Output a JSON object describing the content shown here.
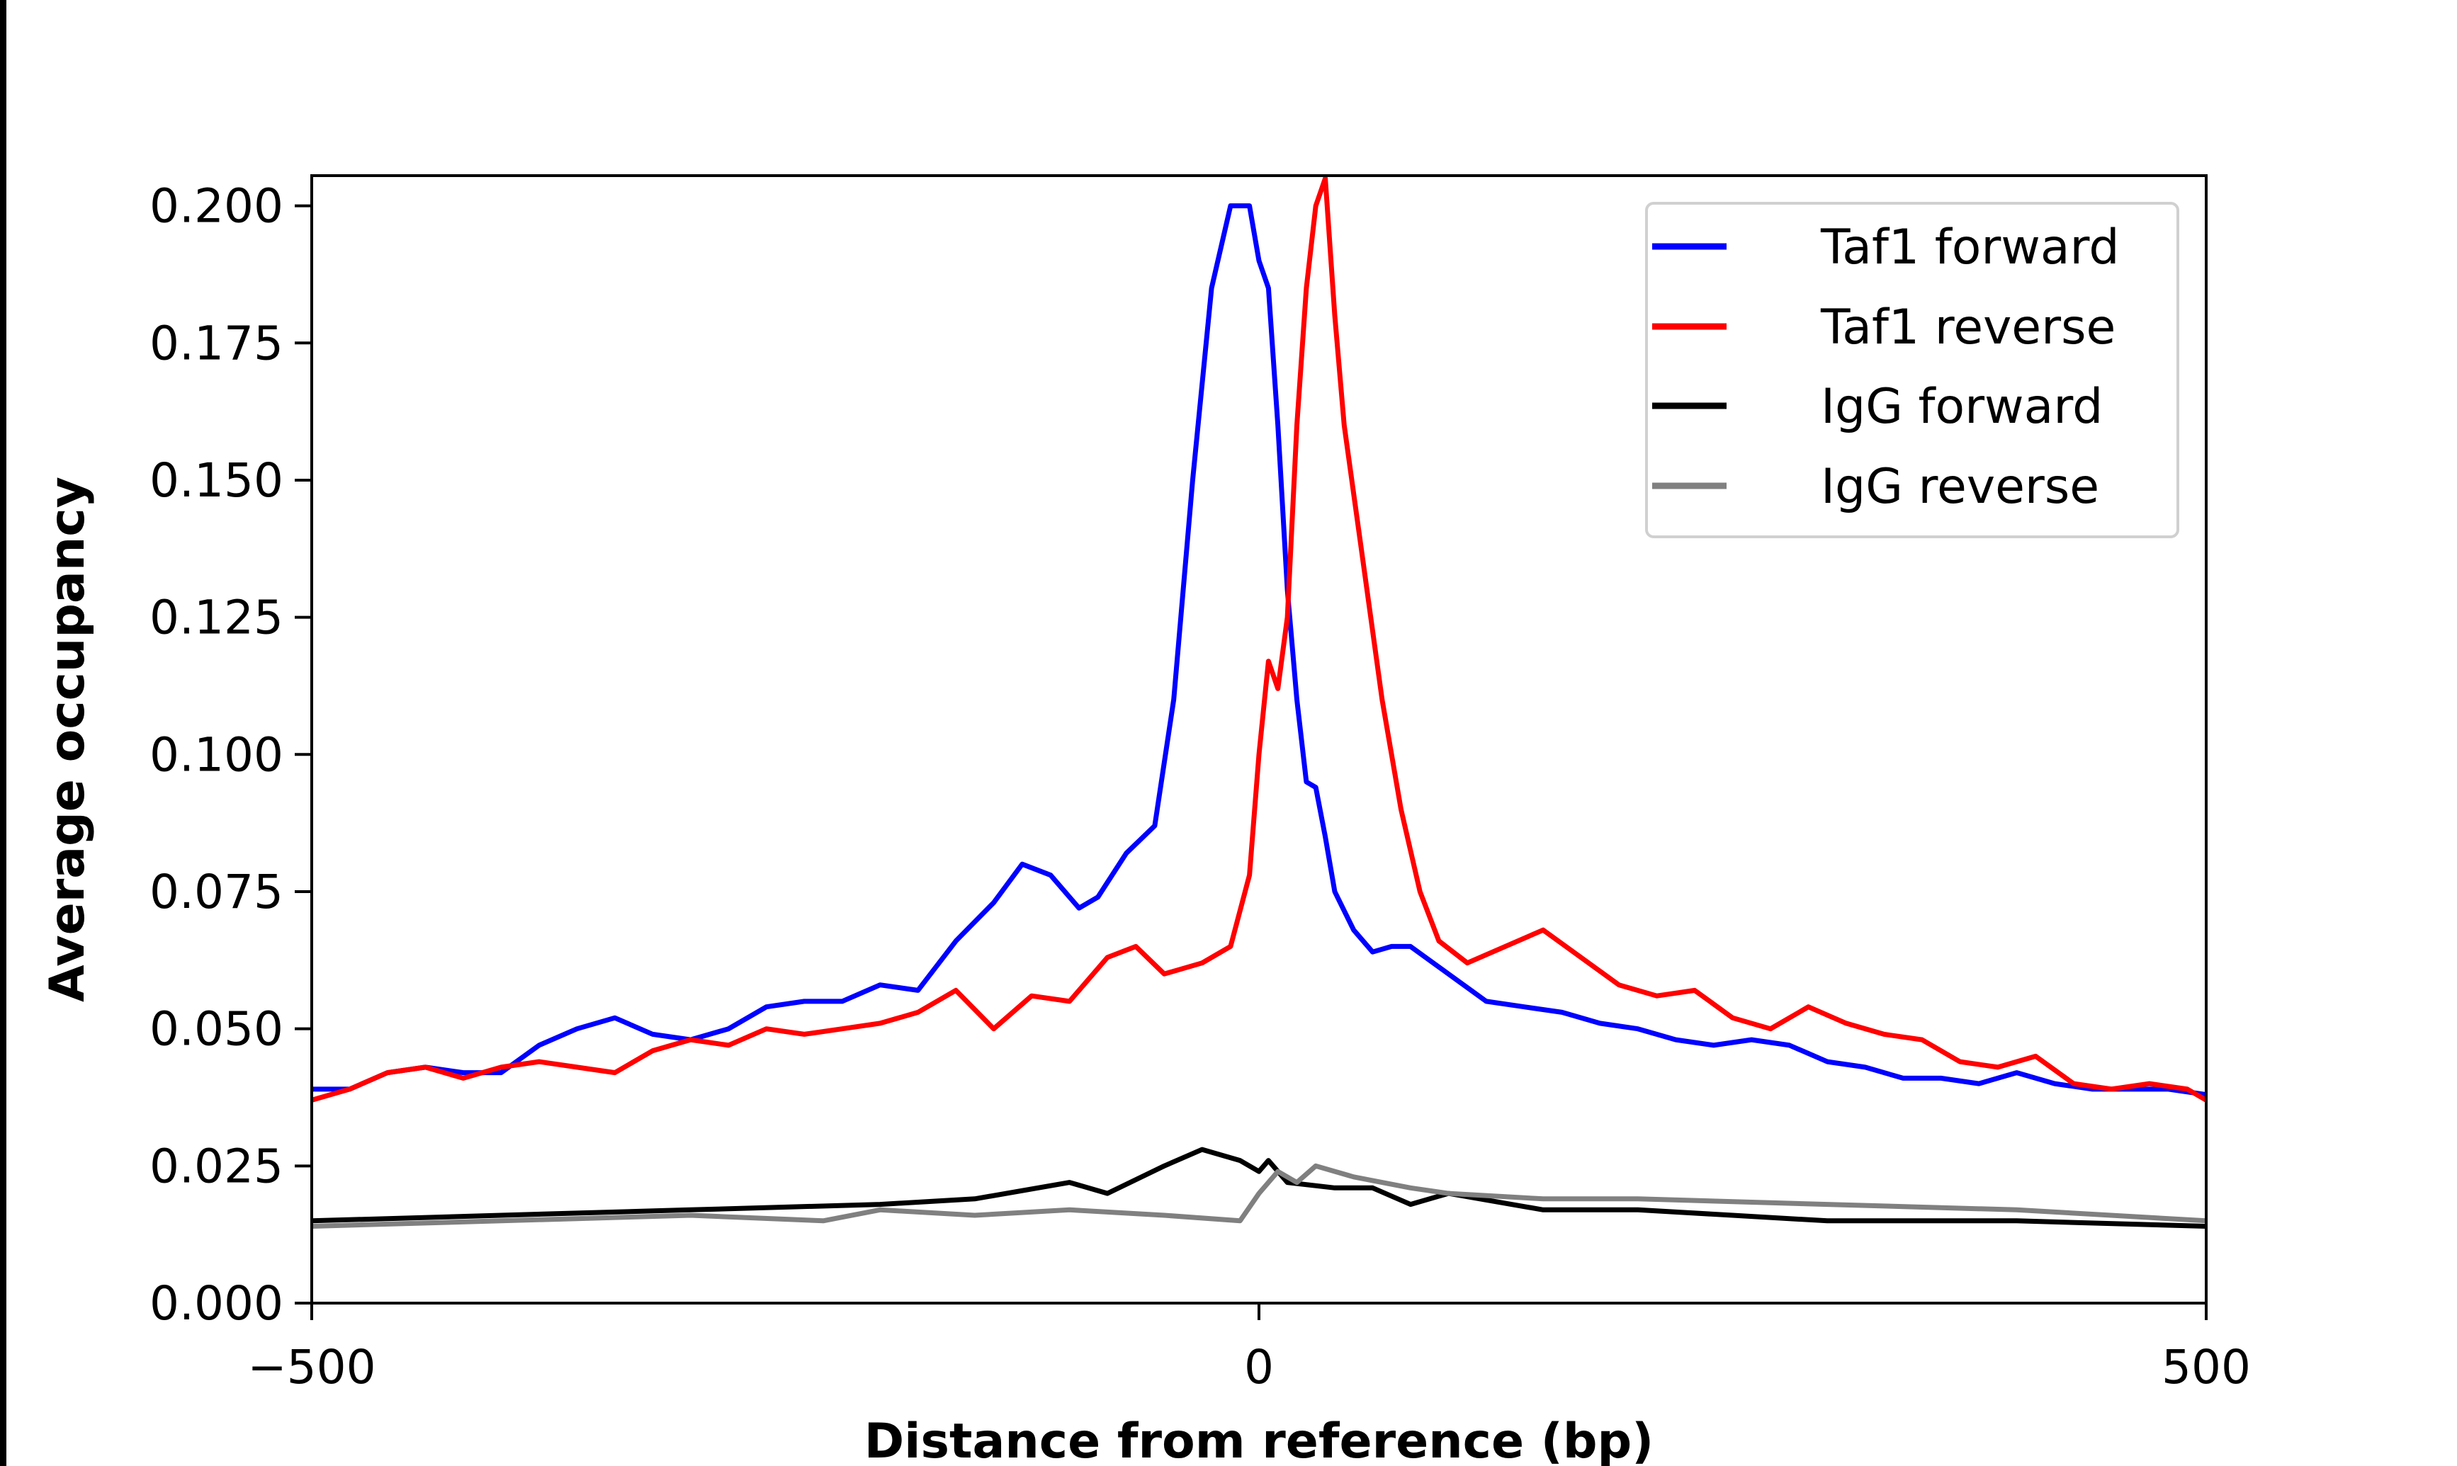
{
  "chart_data": {
    "type": "line",
    "title": "",
    "xlabel": "Distance from reference (bp)",
    "ylabel": "Average occupancy",
    "xlim": [
      -500,
      500
    ],
    "ylim": [
      0,
      0.2055
    ],
    "xticks": [
      -500,
      0,
      500
    ],
    "xtick_labels": [
      "−500",
      "0",
      "500"
    ],
    "yticks": [
      0,
      0.025,
      0.05,
      0.075,
      0.1,
      0.125,
      0.15,
      0.175,
      0.2
    ],
    "ytick_labels": [
      "0.000",
      "0.025",
      "0.050",
      "0.075",
      "0.100",
      "0.125",
      "0.150",
      "0.175",
      "0.200"
    ],
    "grid": false,
    "legend_position": "top-right",
    "series": [
      {
        "name": "Taf1 forward",
        "color": "#0000ff",
        "x": [
          -500,
          -480,
          -460,
          -440,
          -420,
          -400,
          -380,
          -360,
          -340,
          -320,
          -300,
          -280,
          -260,
          -240,
          -220,
          -200,
          -180,
          -160,
          -140,
          -125,
          -110,
          -95,
          -85,
          -70,
          -55,
          -45,
          -35,
          -25,
          -15,
          -5,
          0,
          5,
          10,
          15,
          20,
          25,
          30,
          35,
          40,
          50,
          60,
          70,
          80,
          100,
          120,
          140,
          160,
          180,
          200,
          220,
          240,
          260,
          280,
          300,
          320,
          340,
          360,
          380,
          400,
          420,
          440,
          460,
          480,
          500
        ],
        "y": [
          0.039,
          0.039,
          0.042,
          0.043,
          0.042,
          0.042,
          0.047,
          0.05,
          0.052,
          0.049,
          0.048,
          0.05,
          0.054,
          0.055,
          0.055,
          0.058,
          0.057,
          0.066,
          0.073,
          0.08,
          0.078,
          0.072,
          0.074,
          0.082,
          0.087,
          0.11,
          0.15,
          0.185,
          0.2,
          0.2,
          0.19,
          0.185,
          0.16,
          0.13,
          0.11,
          0.095,
          0.094,
          0.085,
          0.075,
          0.068,
          0.064,
          0.065,
          0.065,
          0.06,
          0.055,
          0.054,
          0.053,
          0.051,
          0.05,
          0.048,
          0.047,
          0.048,
          0.047,
          0.044,
          0.043,
          0.041,
          0.041,
          0.04,
          0.042,
          0.04,
          0.039,
          0.039,
          0.039,
          0.038
        ]
      },
      {
        "name": "Taf1 reverse",
        "color": "#ff0000",
        "x": [
          -500,
          -480,
          -460,
          -440,
          -420,
          -400,
          -380,
          -360,
          -340,
          -320,
          -300,
          -280,
          -260,
          -240,
          -220,
          -200,
          -180,
          -160,
          -140,
          -120,
          -100,
          -80,
          -65,
          -50,
          -30,
          -15,
          -5,
          0,
          5,
          10,
          15,
          20,
          25,
          30,
          35,
          40,
          45,
          55,
          65,
          75,
          85,
          95,
          110,
          130,
          150,
          170,
          190,
          210,
          230,
          250,
          270,
          290,
          310,
          330,
          350,
          370,
          390,
          410,
          430,
          450,
          470,
          490,
          500
        ],
        "y": [
          0.037,
          0.039,
          0.042,
          0.043,
          0.041,
          0.043,
          0.044,
          0.043,
          0.042,
          0.046,
          0.048,
          0.047,
          0.05,
          0.049,
          0.05,
          0.051,
          0.053,
          0.057,
          0.05,
          0.056,
          0.055,
          0.063,
          0.065,
          0.06,
          0.062,
          0.065,
          0.078,
          0.1,
          0.117,
          0.112,
          0.125,
          0.16,
          0.185,
          0.2,
          0.205,
          0.18,
          0.16,
          0.135,
          0.11,
          0.09,
          0.075,
          0.066,
          0.062,
          0.065,
          0.068,
          0.063,
          0.058,
          0.056,
          0.057,
          0.052,
          0.05,
          0.054,
          0.051,
          0.049,
          0.048,
          0.044,
          0.043,
          0.045,
          0.04,
          0.039,
          0.04,
          0.039,
          0.037
        ]
      },
      {
        "name": "IgG forward",
        "color": "#000000",
        "x": [
          -500,
          -400,
          -300,
          -200,
          -150,
          -100,
          -80,
          -50,
          -30,
          -10,
          0,
          5,
          15,
          40,
          60,
          80,
          100,
          150,
          200,
          250,
          300,
          400,
          500
        ],
        "y": [
          0.015,
          0.016,
          0.017,
          0.018,
          0.019,
          0.022,
          0.02,
          0.025,
          0.028,
          0.026,
          0.024,
          0.026,
          0.022,
          0.021,
          0.021,
          0.018,
          0.02,
          0.017,
          0.017,
          0.016,
          0.015,
          0.015,
          0.014
        ]
      },
      {
        "name": "IgG reverse",
        "color": "#808080",
        "x": [
          -500,
          -400,
          -300,
          -230,
          -200,
          -150,
          -100,
          -50,
          -10,
          0,
          10,
          20,
          30,
          50,
          80,
          100,
          150,
          200,
          300,
          400,
          500
        ],
        "y": [
          0.014,
          0.015,
          0.016,
          0.015,
          0.017,
          0.016,
          0.017,
          0.016,
          0.015,
          0.02,
          0.024,
          0.022,
          0.025,
          0.023,
          0.021,
          0.02,
          0.019,
          0.019,
          0.018,
          0.017,
          0.015
        ]
      }
    ]
  }
}
